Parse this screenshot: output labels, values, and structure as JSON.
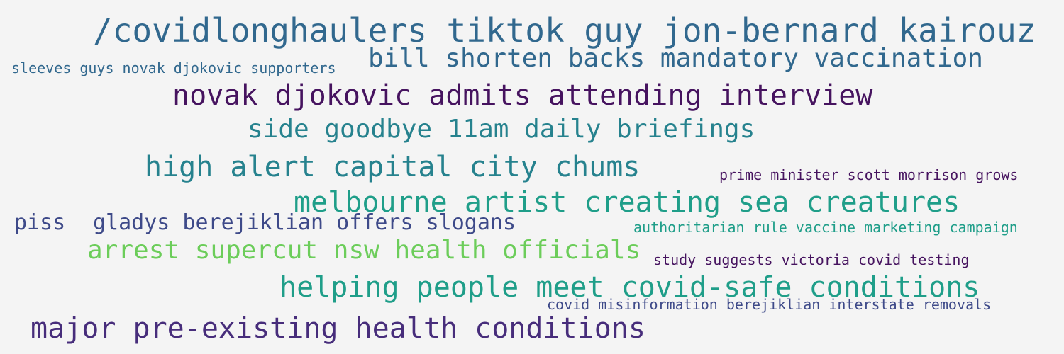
{
  "palette": {
    "background": "#f4f4f4",
    "dark_purple": "#46135f",
    "indigo": "#3e4a89",
    "slate_blue": "#31688e",
    "teal": "#26828e",
    "green_teal": "#1f9e89",
    "light_green": "#6ccd5a"
  },
  "phrases": [
    {
      "text": "/covidlonghaulers tiktok guy jon-bernard kairouz",
      "color": "#31688e"
    },
    {
      "text": "bill shorten backs mandatory vaccination",
      "color": "#31688e"
    },
    {
      "text": "sleeves guys novak djokovic supporters",
      "color": "#31688e"
    },
    {
      "text": "novak djokovic admits attending interview",
      "color": "#46135f"
    },
    {
      "text": "side goodbye 11am daily briefings",
      "color": "#26828e"
    },
    {
      "text": "high alert capital city chums",
      "color": "#26828e"
    },
    {
      "text": "prime minister scott morrison grows",
      "color": "#46135f"
    },
    {
      "text": "melbourne artist creating sea creatures",
      "color": "#1f9e89"
    },
    {
      "text": "piss",
      "color": "#3e4a89"
    },
    {
      "text": "gladys berejiklian offers slogans",
      "color": "#3e4a89"
    },
    {
      "text": "authoritarian rule vaccine marketing campaign",
      "color": "#1f9e89"
    },
    {
      "text": "arrest supercut nsw health officials",
      "color": "#6ccd5a"
    },
    {
      "text": "study suggests victoria covid testing",
      "color": "#46135f"
    },
    {
      "text": "helping people meet covid-safe conditions",
      "color": "#1f9e89"
    },
    {
      "text": "covid misinformation berejiklian interstate removals",
      "color": "#3e4a89"
    },
    {
      "text": "major pre-existing health conditions",
      "color": "#472d7b"
    }
  ]
}
